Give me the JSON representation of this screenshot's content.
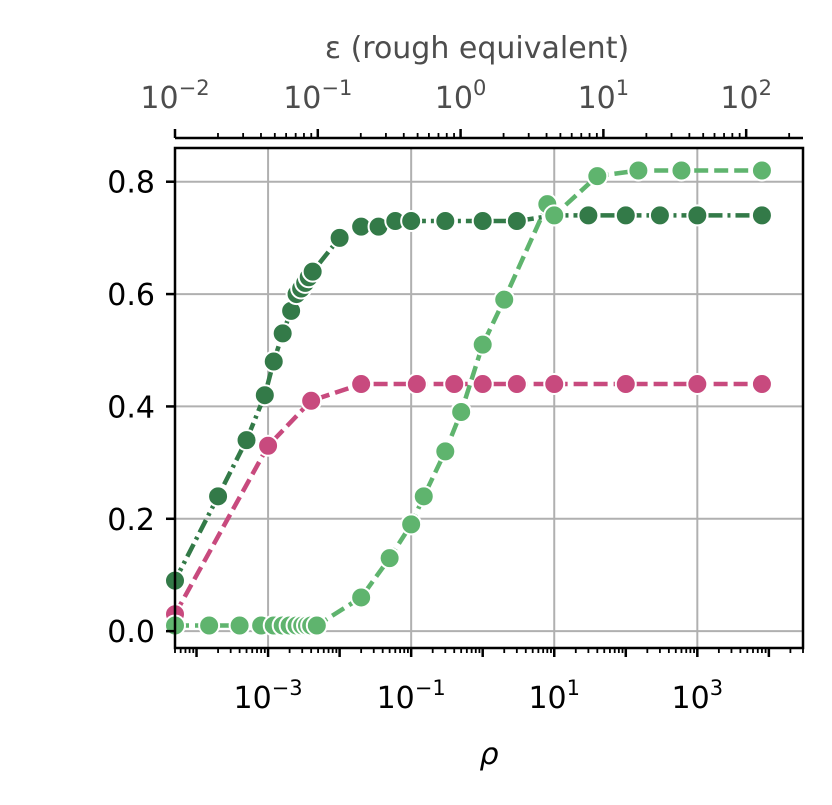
{
  "chart_data": {
    "type": "line",
    "xlabel": "ρ",
    "top_xlabel": "ε (rough equivalent)",
    "xscale": "log",
    "xlim": [
      5e-05,
      30000
    ],
    "ylim": [
      -0.03,
      0.86
    ],
    "grid": true,
    "x_ticks": [
      {
        "value": 0.001,
        "label": "10^-3"
      },
      {
        "value": 0.1,
        "label": "10^-1"
      },
      {
        "value": 10,
        "label": "10^1"
      },
      {
        "value": 1000,
        "label": "10^3"
      }
    ],
    "y_ticks": [
      {
        "value": 0.0,
        "label": "0.0"
      },
      {
        "value": 0.2,
        "label": "0.2"
      },
      {
        "value": 0.4,
        "label": "0.4"
      },
      {
        "value": 0.6,
        "label": "0.6"
      },
      {
        "value": 0.8,
        "label": "0.8"
      }
    ],
    "top_axis": {
      "xlim": [
        0.01,
        250
      ],
      "ticks": [
        {
          "value": 0.01,
          "label": "10^-2"
        },
        {
          "value": 0.1,
          "label": "10^-1"
        },
        {
          "value": 1,
          "label": "10^0"
        },
        {
          "value": 10,
          "label": "10^1"
        },
        {
          "value": 100,
          "label": "10^2"
        }
      ]
    },
    "series": [
      {
        "color": "#337a48",
        "line_style": "dashdot",
        "x": [
          5e-05,
          0.0002,
          0.0005,
          0.0009,
          0.0012,
          0.0016,
          0.0021,
          0.0025,
          0.0029,
          0.0033,
          0.0037,
          0.0042,
          0.01,
          0.02,
          0.035,
          0.06,
          0.1,
          0.3,
          1,
          3,
          10,
          30,
          100,
          300,
          1000,
          8000
        ],
        "y": [
          0.09,
          0.24,
          0.34,
          0.42,
          0.48,
          0.53,
          0.57,
          0.6,
          0.61,
          0.62,
          0.63,
          0.64,
          0.7,
          0.72,
          0.72,
          0.73,
          0.73,
          0.73,
          0.73,
          0.73,
          0.74,
          0.74,
          0.74,
          0.74,
          0.74,
          0.74
        ]
      },
      {
        "color": "#c84a7e",
        "line_style": "dashed",
        "x": [
          5e-05,
          0.001,
          0.004,
          0.02,
          0.12,
          0.4,
          1,
          3,
          10,
          100,
          1000,
          8000
        ],
        "y": [
          0.03,
          0.33,
          0.41,
          0.44,
          0.44,
          0.44,
          0.44,
          0.44,
          0.44,
          0.44,
          0.44,
          0.44
        ]
      },
      {
        "color": "#5fb46e",
        "line_style": "dashed",
        "x": [
          5e-05,
          0.00015,
          0.0004,
          0.0008,
          0.0012,
          0.0016,
          0.002,
          0.0025,
          0.003,
          0.0035,
          0.004,
          0.0048,
          0.02,
          0.05,
          0.1,
          0.15,
          0.3,
          0.5,
          1,
          2,
          8,
          10,
          40,
          150,
          600,
          8000
        ],
        "y": [
          0.01,
          0.01,
          0.01,
          0.01,
          0.01,
          0.01,
          0.01,
          0.01,
          0.01,
          0.01,
          0.01,
          0.01,
          0.06,
          0.13,
          0.19,
          0.24,
          0.32,
          0.39,
          0.51,
          0.59,
          0.76,
          0.74,
          0.81,
          0.82,
          0.82,
          0.82
        ]
      }
    ]
  }
}
